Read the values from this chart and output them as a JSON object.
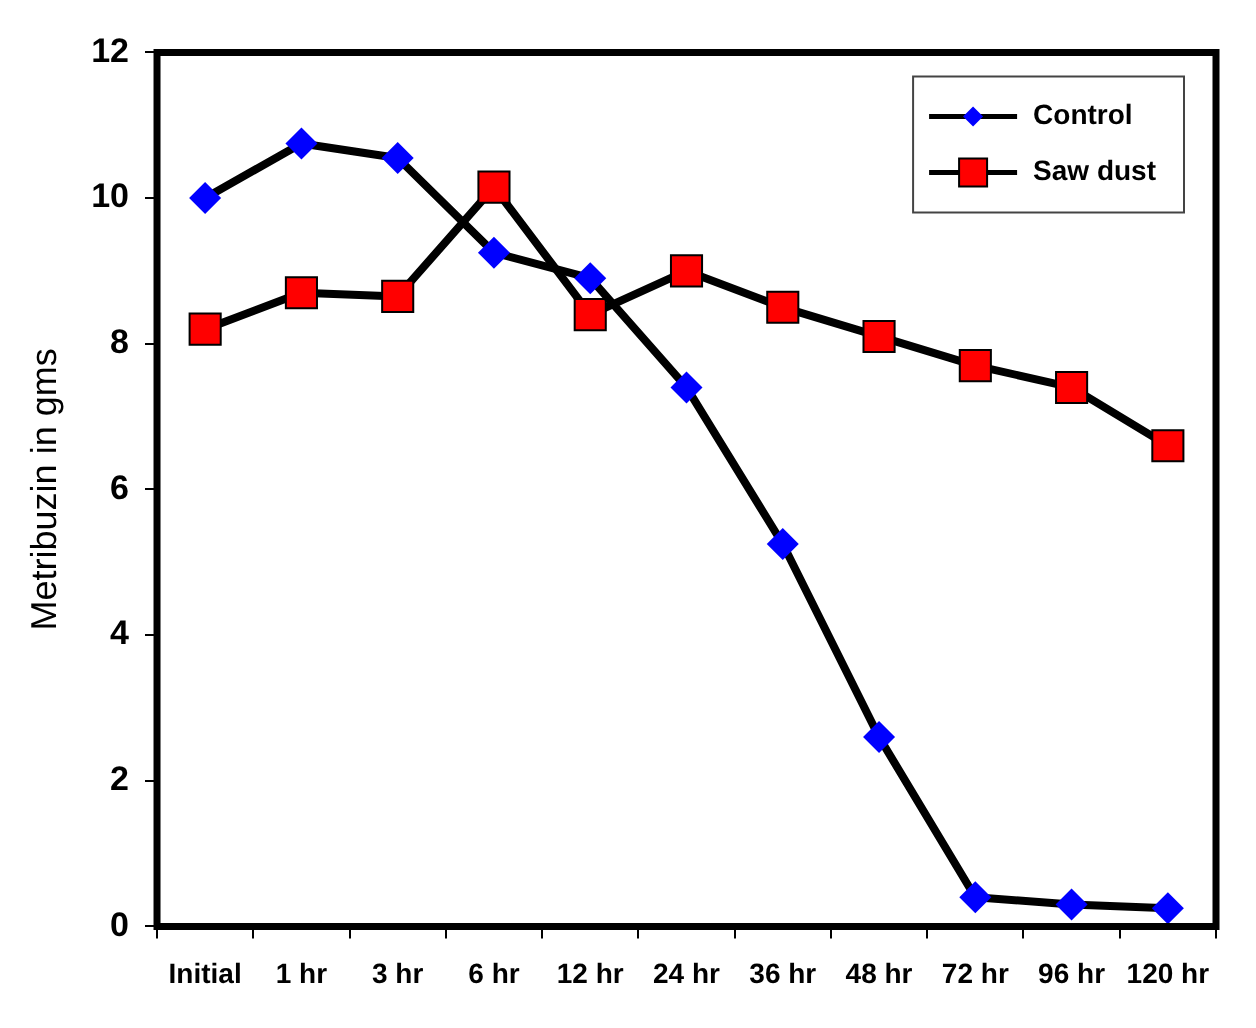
{
  "chart_data": {
    "type": "line",
    "ylabel": "Metribuzin in gms",
    "categories": [
      "Initial",
      "1 hr",
      "3 hr",
      "6 hr",
      "12 hr",
      "24 hr",
      "36 hr",
      "48 hr",
      "72 hr",
      "96 hr",
      "120 hr"
    ],
    "series": [
      {
        "name": "Control",
        "color": "#0000ff",
        "marker": "diamond",
        "values": [
          10,
          10.75,
          10.55,
          9.25,
          8.9,
          7.4,
          5.25,
          2.6,
          0.4,
          0.3,
          0.25
        ]
      },
      {
        "name": "Saw dust",
        "color": "#ff0000",
        "marker": "square",
        "values": [
          8.2,
          8.7,
          8.65,
          10.15,
          8.4,
          9.0,
          8.5,
          8.1,
          7.7,
          7.4,
          6.6
        ]
      }
    ],
    "ylim": [
      0,
      12
    ],
    "yticks": [
      0,
      2,
      4,
      6,
      8,
      10,
      12
    ],
    "grid": false,
    "legend": "top right",
    "line_style": "solid"
  }
}
